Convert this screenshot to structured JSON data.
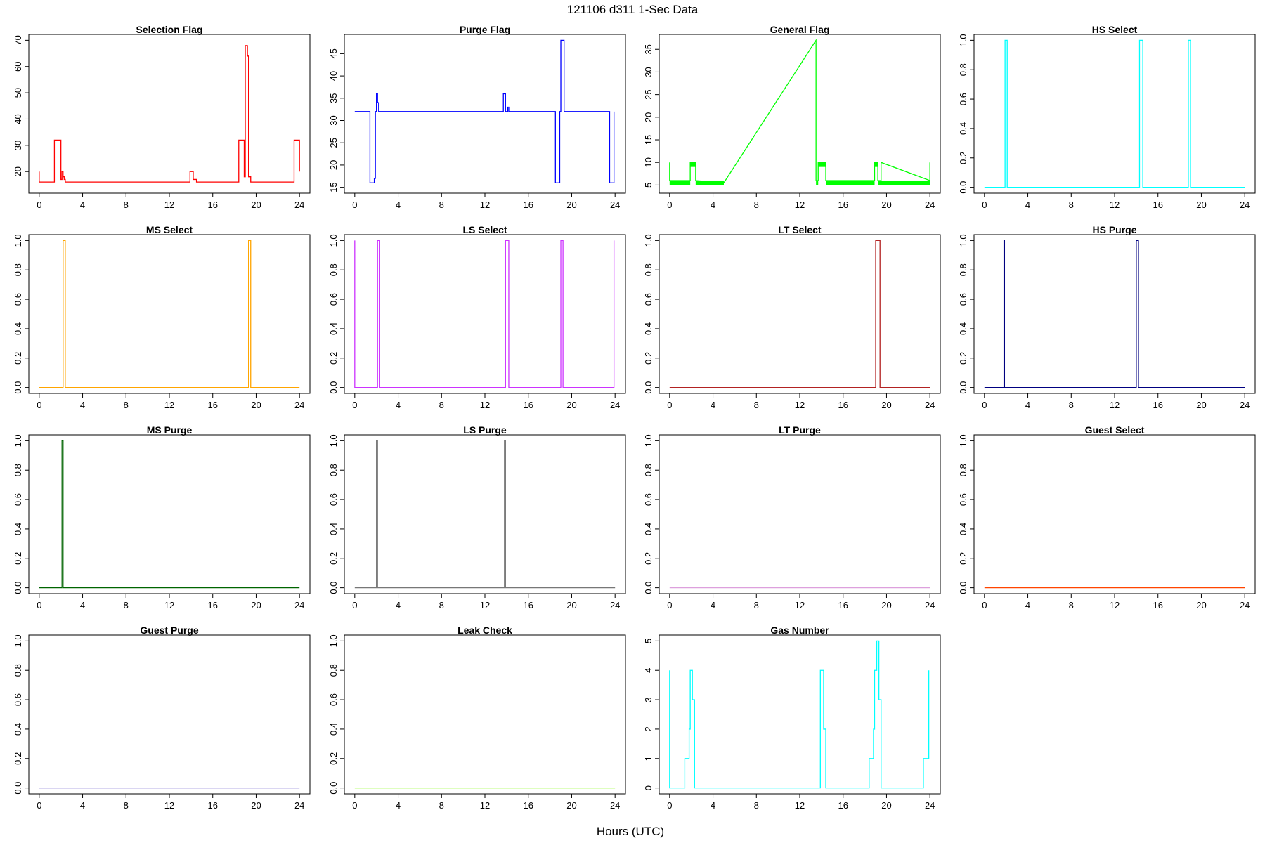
{
  "figure": {
    "title": "121106   d311   1-Sec Data",
    "xlabel": "Hours (UTC)"
  },
  "chart_data": [
    {
      "type": "line",
      "title": "Selection Flag",
      "color": "#ff0000",
      "xlim": [
        0,
        24
      ],
      "xticks": [
        0,
        4,
        8,
        12,
        16,
        20,
        24
      ],
      "ylim": [
        14,
        70
      ],
      "yticks": [
        20,
        30,
        40,
        50,
        60,
        70
      ],
      "x": [
        0,
        0,
        1.4,
        1.4,
        2.0,
        2.0,
        2.1,
        2.1,
        2.2,
        2.2,
        2.3,
        2.3,
        2.4,
        2.4,
        13.9,
        13.9,
        14.2,
        14.2,
        14.5,
        14.5,
        18.4,
        18.4,
        18.9,
        18.9,
        19.0,
        19.0,
        19.2,
        19.2,
        19.3,
        19.3,
        19.5,
        19.5,
        23.5,
        23.5,
        24.0,
        24.0
      ],
      "y": [
        20,
        16,
        16,
        32,
        32,
        17,
        17,
        20,
        20,
        18,
        18,
        17,
        17,
        16,
        16,
        20,
        20,
        17,
        17,
        16,
        16,
        32,
        32,
        18,
        18,
        68,
        68,
        64,
        64,
        18,
        18,
        16,
        16,
        32,
        32,
        20
      ]
    },
    {
      "type": "line",
      "title": "Purge Flag",
      "color": "#0000ff",
      "xlim": [
        0,
        24
      ],
      "xticks": [
        0,
        4,
        8,
        12,
        16,
        20,
        24
      ],
      "ylim": [
        15,
        48
      ],
      "yticks": [
        15,
        20,
        25,
        30,
        35,
        40,
        45
      ],
      "x": [
        0,
        1.4,
        1.4,
        1.8,
        1.8,
        1.9,
        1.9,
        2.0,
        2.0,
        2.1,
        2.1,
        2.2,
        2.2,
        13.7,
        13.7,
        13.9,
        13.9,
        14.1,
        14.1,
        14.2,
        14.2,
        18.5,
        18.5,
        18.9,
        18.9,
        19.0,
        19.0,
        19.3,
        19.3,
        23.5,
        23.5,
        23.9,
        23.9
      ],
      "y": [
        32,
        32,
        16,
        16,
        17,
        17,
        32,
        32,
        36,
        36,
        34,
        34,
        32,
        32,
        36,
        36,
        32,
        32,
        33,
        33,
        32,
        32,
        16,
        16,
        32,
        32,
        48,
        48,
        32,
        32,
        16,
        16,
        32
      ]
    },
    {
      "type": "line",
      "title": "General Flag",
      "color": "#00ff00",
      "xlim": [
        0,
        24
      ],
      "xticks": [
        0,
        4,
        8,
        12,
        16,
        20,
        24
      ],
      "ylim": [
        4.5,
        37
      ],
      "yticks": [
        5,
        10,
        15,
        20,
        25,
        30,
        35
      ],
      "x": [
        0,
        0,
        1.9,
        1.9,
        2.4,
        2.4,
        5.0,
        13.5,
        13.5,
        13.7,
        13.7,
        14.4,
        14.4,
        18.9,
        18.9,
        19.2,
        19.2,
        19.5,
        19.5,
        24.0,
        24.0
      ],
      "y": [
        10,
        6,
        6,
        10,
        10,
        6,
        5.5,
        37,
        6,
        6,
        10,
        10,
        6,
        6,
        10,
        10,
        6,
        6,
        10,
        6,
        10
      ],
      "bands": [
        [
          0,
          1.9,
          5,
          6
        ],
        [
          1.9,
          2.4,
          9,
          10
        ],
        [
          2.4,
          5.0,
          5,
          6
        ],
        [
          13.5,
          13.7,
          5,
          6
        ],
        [
          13.7,
          14.4,
          9,
          10
        ],
        [
          14.4,
          18.9,
          5,
          6
        ],
        [
          18.9,
          19.2,
          9,
          10
        ],
        [
          19.2,
          19.5,
          5,
          6
        ],
        [
          19.5,
          24.0,
          5,
          6
        ]
      ]
    },
    {
      "type": "line",
      "title": "HS Select",
      "color": "#00ffff",
      "xlim": [
        0,
        24
      ],
      "xticks": [
        0,
        4,
        8,
        12,
        16,
        20,
        24
      ],
      "ylim": [
        0,
        1
      ],
      "yticks": [
        0.0,
        0.2,
        0.4,
        0.6,
        0.8,
        1.0
      ],
      "x": [
        0,
        1.9,
        1.9,
        2.1,
        2.1,
        14.3,
        14.3,
        14.6,
        14.6,
        18.8,
        18.8,
        19.0,
        19.0,
        24
      ],
      "y": [
        0,
        0,
        1,
        1,
        0,
        0,
        1,
        1,
        0,
        0,
        1,
        1,
        0,
        0
      ]
    },
    {
      "type": "line",
      "title": "MS Select",
      "color": "#ffa500",
      "xlim": [
        0,
        24
      ],
      "xticks": [
        0,
        4,
        8,
        12,
        16,
        20,
        24
      ],
      "ylim": [
        0,
        1
      ],
      "yticks": [
        0.0,
        0.2,
        0.4,
        0.6,
        0.8,
        1.0
      ],
      "x": [
        0,
        2.2,
        2.2,
        2.4,
        2.4,
        19.3,
        19.3,
        19.5,
        19.5,
        24
      ],
      "y": [
        0,
        0,
        1,
        1,
        0,
        0,
        1,
        1,
        0,
        0
      ]
    },
    {
      "type": "line",
      "title": "LS Select",
      "color": "#cc33ff",
      "xlim": [
        0,
        24
      ],
      "xticks": [
        0,
        4,
        8,
        12,
        16,
        20,
        24
      ],
      "ylim": [
        0,
        1
      ],
      "yticks": [
        0.0,
        0.2,
        0.4,
        0.6,
        0.8,
        1.0
      ],
      "x": [
        0,
        0,
        2.1,
        2.1,
        2.3,
        2.3,
        13.9,
        13.9,
        14.2,
        14.2,
        19.0,
        19.0,
        19.2,
        19.2,
        23.9,
        23.9
      ],
      "y": [
        1,
        0,
        0,
        1,
        1,
        0,
        0,
        1,
        1,
        0,
        0,
        1,
        1,
        0,
        0,
        1
      ]
    },
    {
      "type": "line",
      "title": "LT Select",
      "color": "#b22222",
      "xlim": [
        0,
        24
      ],
      "xticks": [
        0,
        4,
        8,
        12,
        16,
        20,
        24
      ],
      "ylim": [
        0,
        1
      ],
      "yticks": [
        0.0,
        0.2,
        0.4,
        0.6,
        0.8,
        1.0
      ],
      "x": [
        0,
        19.0,
        19.0,
        19.4,
        19.4,
        24
      ],
      "y": [
        0,
        0,
        1,
        1,
        0,
        0
      ]
    },
    {
      "type": "line",
      "title": "HS Purge",
      "color": "#000080",
      "xlim": [
        0,
        24
      ],
      "xticks": [
        0,
        4,
        8,
        12,
        16,
        20,
        24
      ],
      "ylim": [
        0,
        1
      ],
      "yticks": [
        0.0,
        0.2,
        0.4,
        0.6,
        0.8,
        1.0
      ],
      "x": [
        0,
        1.8,
        1.8,
        1.85,
        1.85,
        14.0,
        14.0,
        14.2,
        14.2,
        24
      ],
      "y": [
        0,
        0,
        1,
        1,
        0,
        0,
        1,
        1,
        0,
        0
      ]
    },
    {
      "type": "line",
      "title": "MS Purge",
      "color": "#006400",
      "xlim": [
        0,
        24
      ],
      "xticks": [
        0,
        4,
        8,
        12,
        16,
        20,
        24
      ],
      "ylim": [
        0,
        1
      ],
      "yticks": [
        0.0,
        0.2,
        0.4,
        0.6,
        0.8,
        1.0
      ],
      "x": [
        0,
        2.1,
        2.1,
        2.2,
        2.2,
        24
      ],
      "y": [
        0,
        0,
        1,
        1,
        0,
        0
      ]
    },
    {
      "type": "line",
      "title": "LS Purge",
      "color": "#777777",
      "xlim": [
        0,
        24
      ],
      "xticks": [
        0,
        4,
        8,
        12,
        16,
        20,
        24
      ],
      "ylim": [
        0,
        1
      ],
      "yticks": [
        0.0,
        0.2,
        0.4,
        0.6,
        0.8,
        1.0
      ],
      "x": [
        0,
        2.0,
        2.0,
        2.1,
        2.1,
        13.8,
        13.8,
        13.9,
        13.9,
        24
      ],
      "y": [
        0,
        0,
        1,
        1,
        0,
        0,
        1,
        1,
        0,
        0
      ]
    },
    {
      "type": "line",
      "title": "LT Purge",
      "color": "#dda0dd",
      "xlim": [
        0,
        24
      ],
      "xticks": [
        0,
        4,
        8,
        12,
        16,
        20,
        24
      ],
      "ylim": [
        0,
        1
      ],
      "yticks": [
        0.0,
        0.2,
        0.4,
        0.6,
        0.8,
        1.0
      ],
      "x": [
        0,
        24
      ],
      "y": [
        0,
        0
      ]
    },
    {
      "type": "line",
      "title": "Guest Select",
      "color": "#ff4500",
      "xlim": [
        0,
        24
      ],
      "xticks": [
        0,
        4,
        8,
        12,
        16,
        20,
        24
      ],
      "ylim": [
        0,
        1
      ],
      "yticks": [
        0.0,
        0.2,
        0.4,
        0.6,
        0.8,
        1.0
      ],
      "x": [
        0,
        24
      ],
      "y": [
        0,
        0
      ]
    },
    {
      "type": "line",
      "title": "Guest Purge",
      "color": "#6a5acd",
      "xlim": [
        0,
        24
      ],
      "xticks": [
        0,
        4,
        8,
        12,
        16,
        20,
        24
      ],
      "ylim": [
        0,
        1
      ],
      "yticks": [
        0.0,
        0.2,
        0.4,
        0.6,
        0.8,
        1.0
      ],
      "x": [
        0,
        24
      ],
      "y": [
        0,
        0
      ]
    },
    {
      "type": "line",
      "title": "Leak Check",
      "color": "#7cfc00",
      "xlim": [
        0,
        24
      ],
      "xticks": [
        0,
        4,
        8,
        12,
        16,
        20,
        24
      ],
      "ylim": [
        0,
        1
      ],
      "yticks": [
        0.0,
        0.2,
        0.4,
        0.6,
        0.8,
        1.0
      ],
      "x": [
        0,
        24
      ],
      "y": [
        0,
        0
      ]
    },
    {
      "type": "line",
      "title": "Gas Number",
      "color": "#00ffff",
      "xlim": [
        0,
        24
      ],
      "xticks": [
        0,
        4,
        8,
        12,
        16,
        20,
        24
      ],
      "ylim": [
        0,
        5
      ],
      "yticks": [
        0,
        1,
        2,
        3,
        4,
        5
      ],
      "x": [
        0,
        0,
        1.4,
        1.4,
        1.8,
        1.8,
        1.9,
        1.9,
        2.1,
        2.1,
        2.3,
        2.3,
        2.4,
        2.4,
        13.9,
        13.9,
        14.2,
        14.2,
        14.4,
        14.4,
        18.4,
        18.4,
        18.8,
        18.8,
        18.9,
        18.9,
        19.1,
        19.1,
        19.3,
        19.3,
        19.5,
        19.5,
        23.4,
        23.4,
        23.9,
        23.9
      ],
      "y": [
        4,
        0,
        0,
        1,
        1,
        2,
        2,
        4,
        4,
        3,
        3,
        0,
        0,
        0,
        0,
        4,
        4,
        2,
        2,
        0,
        0,
        1,
        1,
        2,
        2,
        4,
        4,
        5,
        5,
        3,
        3,
        0,
        0,
        1,
        1,
        4
      ]
    }
  ]
}
